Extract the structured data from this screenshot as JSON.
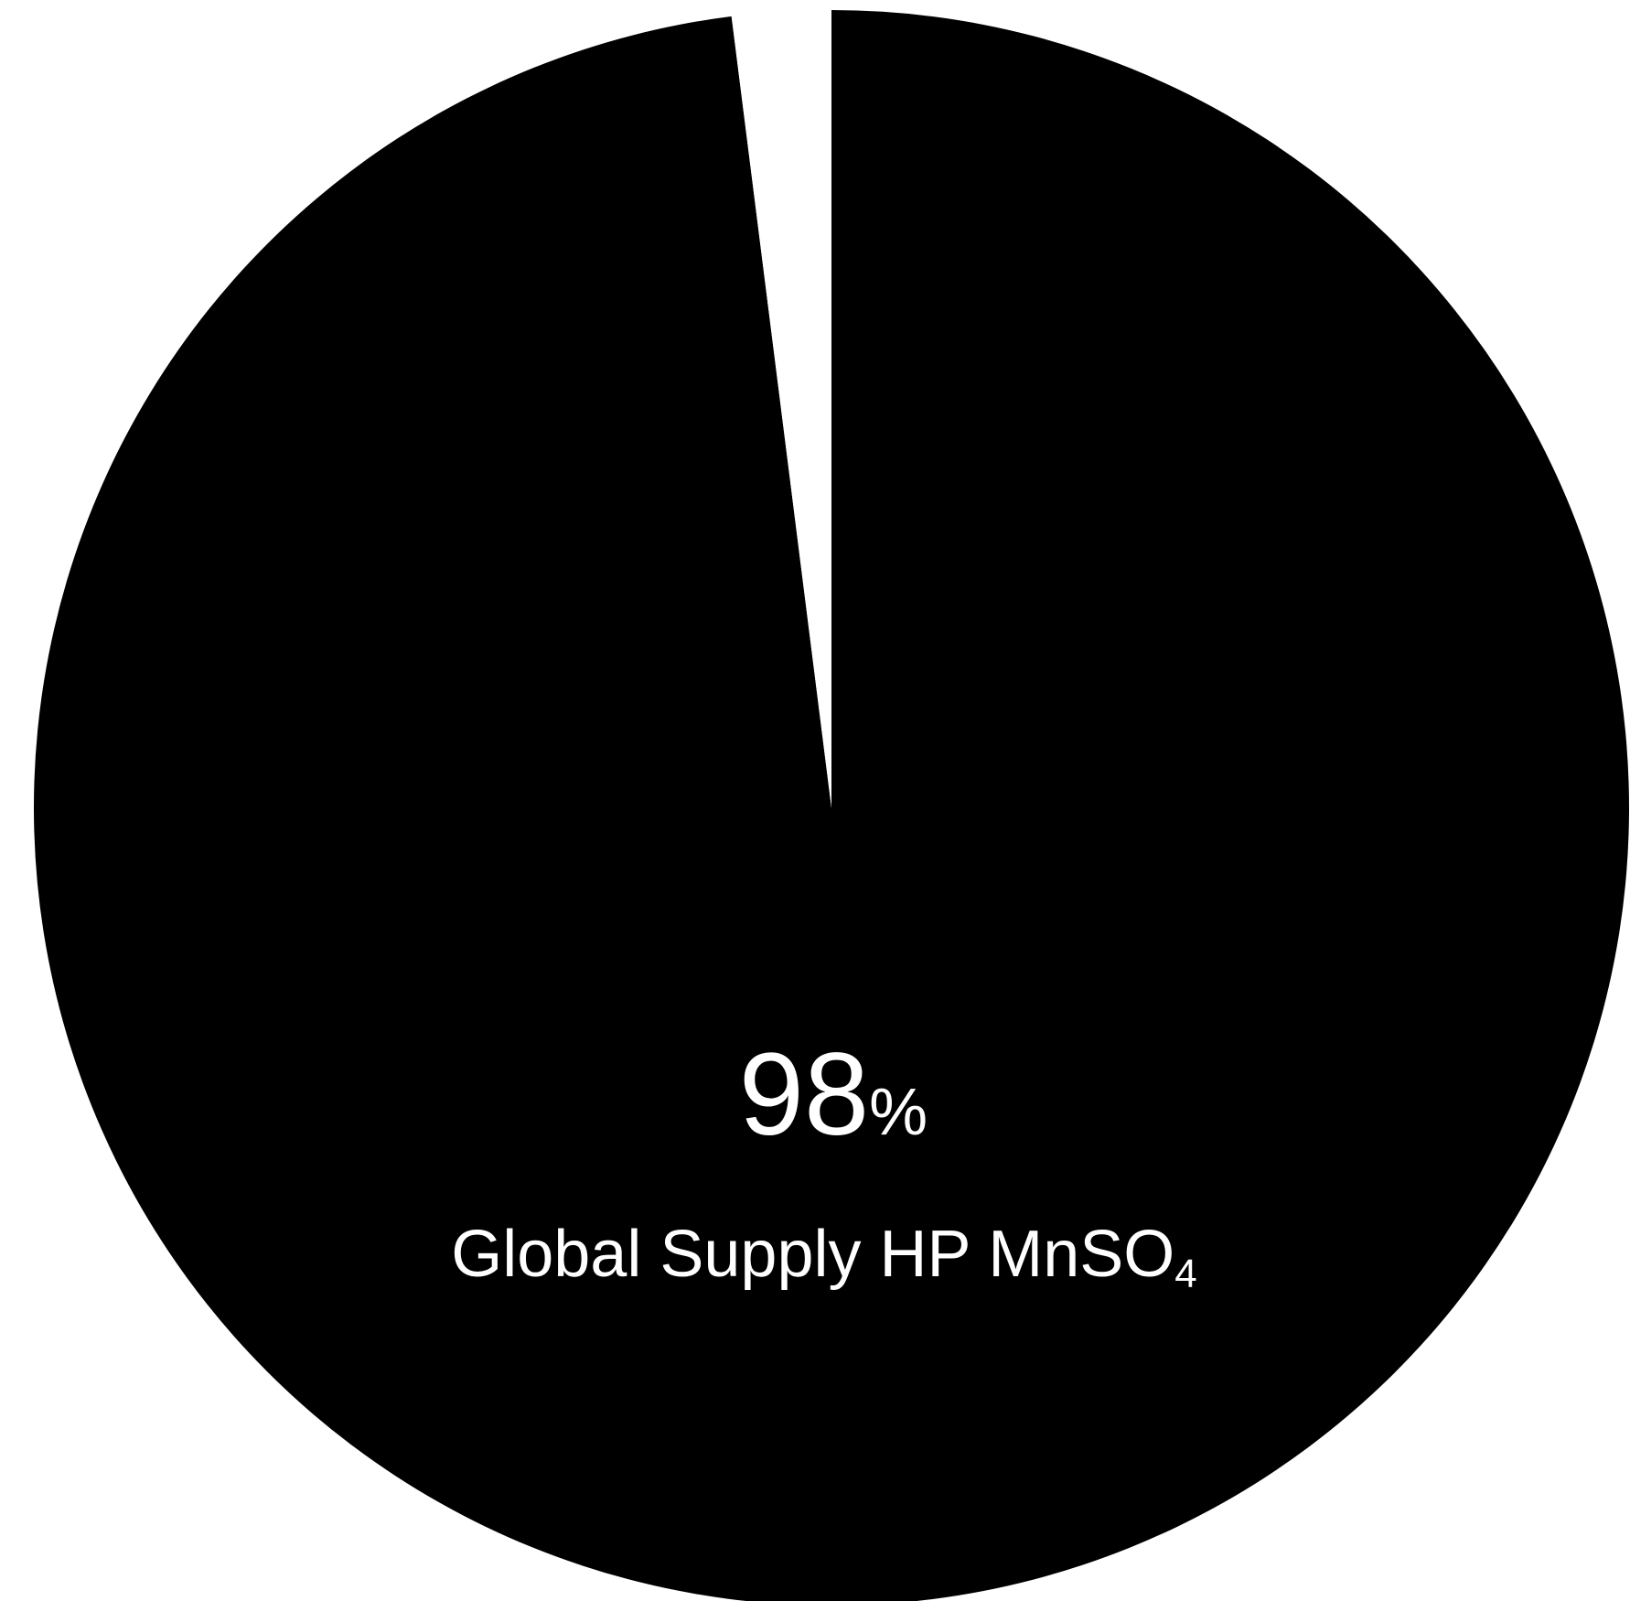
{
  "chart_data": {
    "type": "pie",
    "slices": [
      {
        "value": 98,
        "color": "#000000"
      },
      {
        "value": 2,
        "color": "#ffffff"
      }
    ],
    "start": "top",
    "direction": "clockwise"
  },
  "center_label": {
    "number": "98",
    "unit": "%",
    "caption_main": "Global Supply HP MnSO",
    "caption_sub": "4"
  }
}
